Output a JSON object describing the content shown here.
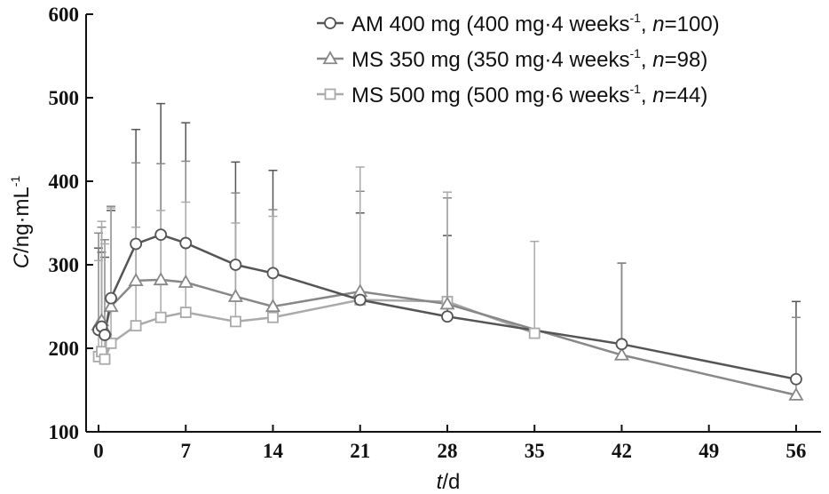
{
  "chart_data": {
    "type": "line",
    "title": "",
    "xlabel": {
      "symbol": "t",
      "unit": "d"
    },
    "ylabel": {
      "symbol": "C",
      "unit_main": "ng·mL",
      "unit_sup": "-1"
    },
    "xlim": [
      -1,
      58
    ],
    "ylim": [
      100,
      600
    ],
    "xticks": [
      0,
      7,
      14,
      21,
      28,
      35,
      42,
      49,
      56
    ],
    "yticks": [
      100,
      200,
      300,
      400,
      500,
      600
    ],
    "grid": false,
    "legend_position": "top-right",
    "series": [
      {
        "name": "AM 400 mg (400 mg·4 weeks-1, n=100)",
        "legend_parts": {
          "pre": "AM 400 mg (400 mg·4 weeks",
          "sup": "-1",
          "mid": ", ",
          "italic": "n",
          "post": "=100)"
        },
        "marker": "circle",
        "color": "#555555",
        "x": [
          0,
          0.25,
          0.5,
          1,
          3,
          5,
          7,
          11,
          14,
          21,
          28,
          42,
          56
        ],
        "y": [
          222,
          226,
          216,
          260,
          325,
          336,
          326,
          300,
          290,
          258,
          238,
          205,
          163
        ],
        "yerr_upper": [
          320,
          315,
          309,
          365,
          462,
          493,
          470,
          423,
          413,
          362,
          335,
          302,
          256
        ]
      },
      {
        "name": "MS 350 mg (350 mg·4 weeks-1, n=98)",
        "legend_parts": {
          "pre": "MS 350 mg (350 mg·4 weeks",
          "sup": "-1",
          "mid": ", ",
          "italic": "n",
          "post": "=98)"
        },
        "marker": "triangle",
        "color": "#888888",
        "x": [
          0,
          0.25,
          0.5,
          1,
          3,
          5,
          7,
          11,
          14,
          21,
          28,
          42,
          56
        ],
        "y": [
          228,
          233,
          222,
          250,
          281,
          282,
          279,
          262,
          250,
          268,
          253,
          192,
          144
        ],
        "yerr_upper": [
          338,
          345,
          330,
          370,
          422,
          421,
          424,
          386,
          366,
          388,
          380,
          302,
          237
        ]
      },
      {
        "name": "MS 500 mg (500 mg·6 weeks-1, n=44)",
        "legend_parts": {
          "pre": "MS 500 mg (500 mg·6 weeks",
          "sup": "-1",
          "mid": ", ",
          "italic": "n",
          "post": "=44)"
        },
        "marker": "square",
        "color": "#aaaaaa",
        "x": [
          0,
          0.25,
          0.5,
          1,
          3,
          5,
          7,
          11,
          14,
          21,
          28,
          35
        ],
        "y": [
          190,
          196,
          187,
          206,
          227,
          237,
          243,
          232,
          237,
          258,
          256,
          218
        ],
        "yerr_upper": [
          305,
          352,
          325,
          368,
          345,
          365,
          375,
          350,
          358,
          417,
          387,
          328
        ]
      }
    ]
  }
}
